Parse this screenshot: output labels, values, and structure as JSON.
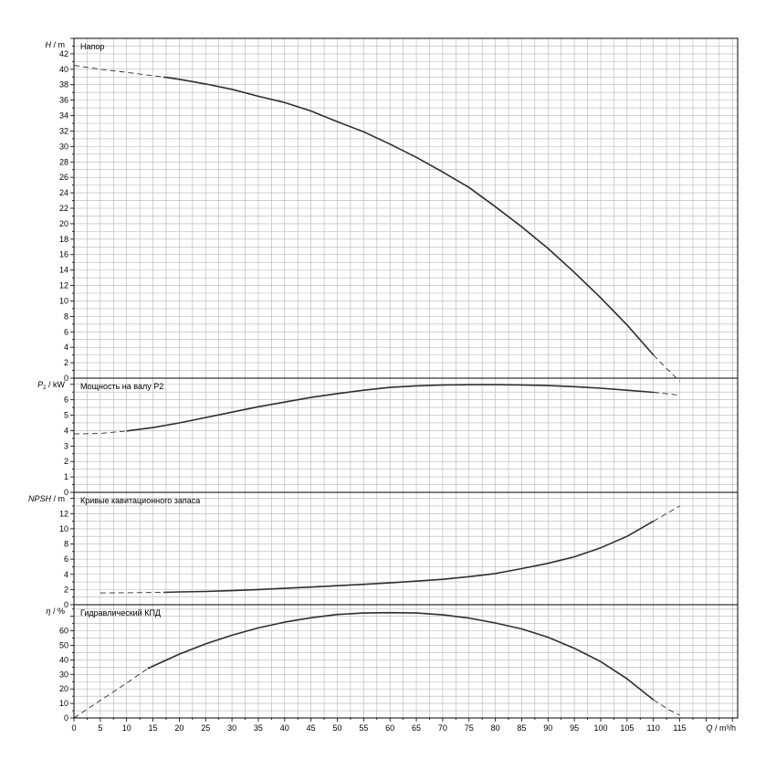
{
  "x_axis": {
    "label_q": "Q",
    "label_unit": " / m³/h",
    "ticks": [
      "0",
      "5",
      "10",
      "15",
      "20",
      "25",
      "30",
      "35",
      "40",
      "45",
      "50",
      "55",
      "60",
      "65",
      "70",
      "75",
      "80",
      "85",
      "90",
      "95",
      "100",
      "105",
      "110",
      "115"
    ]
  },
  "colors": {
    "curve": "#2b2d3c",
    "grid": "#b4b4b4",
    "axis": "#000000",
    "text": "#000000"
  },
  "chart_data": [
    {
      "type": "line",
      "title": "Напор",
      "ylabel_symbol": "H",
      "ylabel_unit": " / m",
      "xlim": [
        0,
        126
      ],
      "ylim": [
        0,
        44
      ],
      "ytick_labels": [
        "0",
        "2",
        "4",
        "6",
        "8",
        "10",
        "12",
        "14",
        "16",
        "18",
        "20",
        "22",
        "24",
        "26",
        "28",
        "30",
        "32",
        "34",
        "36",
        "38",
        "40",
        "42"
      ],
      "series": [
        {
          "style": "solid",
          "x": [
            17,
            20,
            25,
            30,
            35,
            40,
            45,
            50,
            55,
            60,
            65,
            70,
            75,
            80,
            85,
            90,
            95,
            100,
            105,
            110
          ],
          "y": [
            39.0,
            38.7,
            38.1,
            37.4,
            36.5,
            35.7,
            34.6,
            33.2,
            31.9,
            30.3,
            28.6,
            26.7,
            24.7,
            22.2,
            19.6,
            16.8,
            13.7,
            10.4,
            6.9,
            3.0
          ]
        },
        {
          "style": "dashed",
          "x": [
            0,
            5,
            10,
            17
          ],
          "y": [
            40.5,
            40.0,
            39.6,
            39.0
          ]
        },
        {
          "style": "dashed",
          "x": [
            110,
            112,
            115
          ],
          "y": [
            3.0,
            1.6,
            -0.4
          ]
        }
      ]
    },
    {
      "type": "line",
      "title": "Мощность на валу P2",
      "ylabel_symbol": "P",
      "ylabel_sub": "2",
      "ylabel_unit": " / kW",
      "xlim": [
        0,
        126
      ],
      "ylim": [
        0,
        7.4
      ],
      "ytick_labels": [
        "0",
        "1",
        "2",
        "3",
        "4",
        "5",
        "6"
      ],
      "series": [
        {
          "style": "solid",
          "x": [
            10,
            15,
            20,
            25,
            30,
            35,
            40,
            45,
            50,
            55,
            60,
            65,
            70,
            75,
            80,
            85,
            90,
            95,
            100,
            105,
            110
          ],
          "y": [
            3.98,
            4.2,
            4.5,
            4.85,
            5.2,
            5.55,
            5.85,
            6.15,
            6.4,
            6.62,
            6.8,
            6.9,
            6.96,
            6.98,
            6.98,
            6.96,
            6.92,
            6.85,
            6.75,
            6.62,
            6.48
          ]
        },
        {
          "style": "dashed",
          "x": [
            0,
            5,
            10
          ],
          "y": [
            3.78,
            3.82,
            3.98
          ]
        },
        {
          "style": "dashed",
          "x": [
            110,
            115
          ],
          "y": [
            6.48,
            6.3
          ]
        }
      ]
    },
    {
      "type": "line",
      "title": "Кривые кавитационного запаса",
      "ylabel_symbol": "NPSH",
      "ylabel_unit": " / m",
      "xlim": [
        0,
        126
      ],
      "ylim": [
        0,
        14.8
      ],
      "ytick_labels": [
        "0",
        "2",
        "4",
        "6",
        "8",
        "10",
        "12"
      ],
      "series": [
        {
          "style": "solid",
          "x": [
            17,
            20,
            25,
            30,
            35,
            40,
            45,
            50,
            55,
            60,
            65,
            70,
            75,
            80,
            85,
            90,
            95,
            100,
            105,
            110
          ],
          "y": [
            1.62,
            1.68,
            1.75,
            1.85,
            2.0,
            2.15,
            2.32,
            2.5,
            2.68,
            2.88,
            3.1,
            3.35,
            3.7,
            4.1,
            4.75,
            5.45,
            6.3,
            7.5,
            9.0,
            11.0
          ]
        },
        {
          "style": "dashed",
          "x": [
            5,
            10,
            17
          ],
          "y": [
            1.55,
            1.58,
            1.62
          ]
        },
        {
          "style": "dashed",
          "x": [
            110,
            113,
            115
          ],
          "y": [
            11.0,
            12.2,
            13.0
          ]
        }
      ]
    },
    {
      "type": "line",
      "title": "Гидравлический КПД",
      "ylabel_symbol": "η",
      "ylabel_unit": " / %",
      "xlim": [
        0,
        126
      ],
      "ylim": [
        0,
        78
      ],
      "ytick_labels": [
        "0",
        "10",
        "20",
        "30",
        "40",
        "50",
        "60"
      ],
      "series": [
        {
          "style": "solid",
          "x": [
            14,
            20,
            25,
            30,
            35,
            40,
            45,
            50,
            55,
            60,
            65,
            70,
            75,
            80,
            85,
            90,
            95,
            100,
            105,
            110
          ],
          "y": [
            34.0,
            44.0,
            51.0,
            57.0,
            62.0,
            66.0,
            69.0,
            71.3,
            72.3,
            72.5,
            72.3,
            71.0,
            68.8,
            65.4,
            61.3,
            55.6,
            48.0,
            38.8,
            27.0,
            12.5
          ]
        },
        {
          "style": "dashed",
          "x": [
            0,
            5,
            10,
            14
          ],
          "y": [
            0.0,
            12.0,
            24.0,
            34.0
          ]
        },
        {
          "style": "dashed",
          "x": [
            110,
            113,
            115
          ],
          "y": [
            12.5,
            5.5,
            2.0
          ]
        }
      ]
    }
  ]
}
